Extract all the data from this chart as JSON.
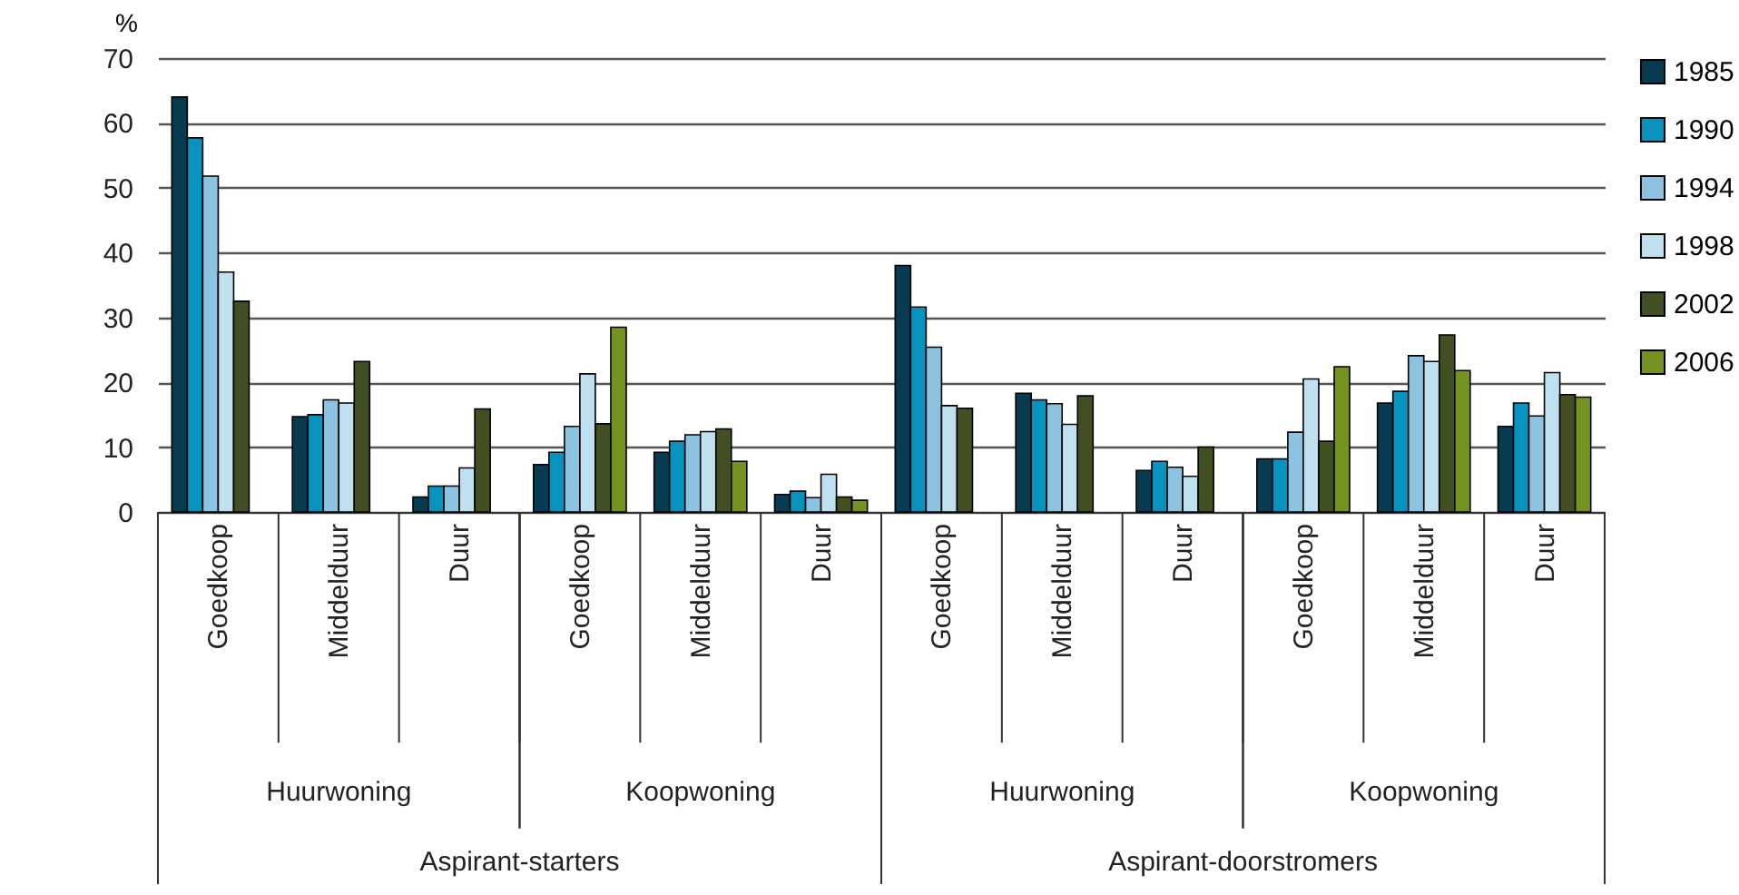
{
  "chart_data": {
    "type": "bar",
    "ylabel": "%",
    "categories": [
      "Goedkoop",
      "Middelduur",
      "Duur",
      "Goedkoop",
      "Middelduur",
      "Duur",
      "Goedkoop",
      "Middelduur",
      "Duur",
      "Goedkoop",
      "Middelduur",
      "Duur"
    ],
    "series": [
      {
        "name": "1985",
        "color": "#073b52",
        "values": [
          64,
          14.7,
          2.3,
          7.3,
          9.2,
          2.7,
          38,
          18.3,
          6.4,
          8.2,
          16.8,
          13.2
        ]
      },
      {
        "name": "1990",
        "color": "#0892be",
        "values": [
          57.7,
          15,
          4,
          9.2,
          10.9,
          3.2,
          31.6,
          17.3,
          7.8,
          8.2,
          18.6,
          16.8
        ]
      },
      {
        "name": "1994",
        "color": "#8cc3e0",
        "values": [
          51.8,
          17.3,
          4,
          13.2,
          11.9,
          2.2,
          25.4,
          16.7,
          6.9,
          12.3,
          24.1,
          14.8
        ]
      },
      {
        "name": "1998",
        "color": "#bfe0ef",
        "values": [
          37,
          16.8,
          6.8,
          21.3,
          12.4,
          5.8,
          16.4,
          13.5,
          5.5,
          20.5,
          23.2,
          21.5
        ]
      },
      {
        "name": "2002",
        "color": "#424f22",
        "values": [
          32.5,
          23.2,
          15.9,
          13.6,
          12.8,
          2.3,
          16,
          17.9,
          10,
          10.9,
          27.3,
          18.1
        ]
      },
      {
        "name": "2006",
        "color": "#74921f",
        "values": [
          null,
          null,
          null,
          28.5,
          7.8,
          1.8,
          null,
          null,
          null,
          22.4,
          21.8,
          17.7
        ]
      }
    ],
    "ylim": [
      0,
      70
    ],
    "yticks": [
      0,
      10,
      20,
      30,
      40,
      50,
      60,
      70
    ],
    "grid": "y",
    "legend": "right",
    "annotations": [
      "Huurwoning",
      "Koopwoning",
      "Huurwoning",
      "Koopwoning",
      "Aspirant-starters",
      "Aspirant-doorstromers"
    ]
  }
}
